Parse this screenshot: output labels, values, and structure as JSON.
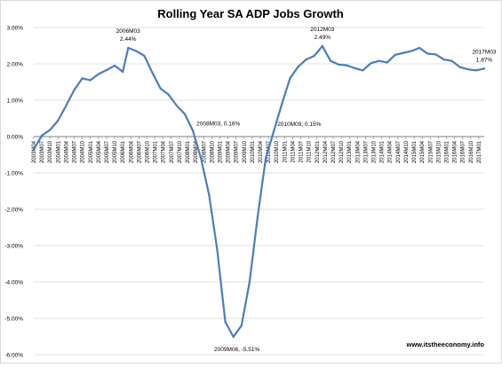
{
  "chart_data": {
    "type": "line",
    "title": "Rolling Year SA ADP Jobs Growth",
    "xlabel": "",
    "ylabel": "",
    "ylim": [
      -0.06,
      0.03
    ],
    "y_ticks": [
      {
        "value": 0.03,
        "label": "3.00%"
      },
      {
        "value": 0.02,
        "label": "2.00%"
      },
      {
        "value": 0.01,
        "label": "1.00%"
      },
      {
        "value": 0.0,
        "label": "0.00%"
      },
      {
        "value": -0.01,
        "label": "-1.00%"
      },
      {
        "value": -0.02,
        "label": "-2.00%"
      },
      {
        "value": -0.03,
        "label": "-3.00%"
      },
      {
        "value": -0.04,
        "label": "-4.00%"
      },
      {
        "value": -0.05,
        "label": "-5.00%"
      },
      {
        "value": -0.06,
        "label": "-6.00%"
      }
    ],
    "x_start": "2003M04",
    "x_end": "2017M03",
    "x_tick_labels": [
      "2003M04",
      "2003M07",
      "2003M10",
      "2004M01",
      "2004M04",
      "2004M07",
      "2004M10",
      "2005M01",
      "2005M04",
      "2005M07",
      "2005M10",
      "2006M01",
      "2006M04",
      "2006M07",
      "2006M10",
      "2007M01",
      "2007M04",
      "2007M07",
      "2007M10",
      "2008M01",
      "2008M04",
      "2008M07",
      "2008M10",
      "2009M01",
      "2009M04",
      "2009M07",
      "2009M10",
      "2010M01",
      "2010M04",
      "2010M07",
      "2010M10",
      "2011M01",
      "2011M04",
      "2011M07",
      "2011M10",
      "2012M01",
      "2012M04",
      "2012M07",
      "2012M10",
      "2013M01",
      "2013M04",
      "2013M07",
      "2013M10",
      "2014M01",
      "2014M04",
      "2014M07",
      "2014M10",
      "2015M01",
      "2015M04",
      "2015M07",
      "2015M10",
      "2016M01",
      "2016M04",
      "2016M07",
      "2016M10",
      "2017M01"
    ],
    "grid": {
      "horizontal": true,
      "vertical": false
    },
    "series": [
      {
        "name": "",
        "color": "#4a7ebb",
        "points": [
          {
            "x": "2003M04",
            "y": -0.0035
          },
          {
            "x": "2003M07",
            "y": 0.0003
          },
          {
            "x": "2003M10",
            "y": 0.0018
          },
          {
            "x": "2004M01",
            "y": 0.0044
          },
          {
            "x": "2004M04",
            "y": 0.0085
          },
          {
            "x": "2004M07",
            "y": 0.0128
          },
          {
            "x": "2004M10",
            "y": 0.016
          },
          {
            "x": "2005M01",
            "y": 0.0155
          },
          {
            "x": "2005M04",
            "y": 0.0172
          },
          {
            "x": "2005M07",
            "y": 0.0183
          },
          {
            "x": "2005M10",
            "y": 0.0195
          },
          {
            "x": "2006M01",
            "y": 0.0178
          },
          {
            "x": "2006M03",
            "y": 0.0244
          },
          {
            "x": "2006M06",
            "y": 0.0235
          },
          {
            "x": "2006M09",
            "y": 0.0222
          },
          {
            "x": "2006M12",
            "y": 0.0175
          },
          {
            "x": "2007M03",
            "y": 0.0132
          },
          {
            "x": "2007M06",
            "y": 0.0115
          },
          {
            "x": "2007M09",
            "y": 0.0085
          },
          {
            "x": "2007M12",
            "y": 0.0062
          },
          {
            "x": "2008M03",
            "y": 0.0016
          },
          {
            "x": "2008M06",
            "y": -0.006
          },
          {
            "x": "2008M09",
            "y": -0.016
          },
          {
            "x": "2008M12",
            "y": -0.031
          },
          {
            "x": "2009M03",
            "y": -0.051
          },
          {
            "x": "2009M06",
            "y": -0.0551
          },
          {
            "x": "2009M09",
            "y": -0.052
          },
          {
            "x": "2009M12",
            "y": -0.04
          },
          {
            "x": "2010M03",
            "y": -0.022
          },
          {
            "x": "2010M06",
            "y": -0.006
          },
          {
            "x": "2010M09",
            "y": 0.0015
          },
          {
            "x": "2010M12",
            "y": 0.009
          },
          {
            "x": "2011M03",
            "y": 0.016
          },
          {
            "x": "2011M06",
            "y": 0.0192
          },
          {
            "x": "2011M09",
            "y": 0.0212
          },
          {
            "x": "2011M12",
            "y": 0.0222
          },
          {
            "x": "2012M03",
            "y": 0.0249
          },
          {
            "x": "2012M06",
            "y": 0.0208
          },
          {
            "x": "2012M09",
            "y": 0.0198
          },
          {
            "x": "2012M12",
            "y": 0.0196
          },
          {
            "x": "2013M03",
            "y": 0.0188
          },
          {
            "x": "2013M06",
            "y": 0.0182
          },
          {
            "x": "2013M09",
            "y": 0.0202
          },
          {
            "x": "2013M12",
            "y": 0.0208
          },
          {
            "x": "2014M03",
            "y": 0.0204
          },
          {
            "x": "2014M06",
            "y": 0.0225
          },
          {
            "x": "2014M09",
            "y": 0.023
          },
          {
            "x": "2014M12",
            "y": 0.0235
          },
          {
            "x": "2015M03",
            "y": 0.0244
          },
          {
            "x": "2015M06",
            "y": 0.0228
          },
          {
            "x": "2015M09",
            "y": 0.0226
          },
          {
            "x": "2015M12",
            "y": 0.0212
          },
          {
            "x": "2016M03",
            "y": 0.0208
          },
          {
            "x": "2016M06",
            "y": 0.0191
          },
          {
            "x": "2016M09",
            "y": 0.0185
          },
          {
            "x": "2016M12",
            "y": 0.0182
          },
          {
            "x": "2017M03",
            "y": 0.0187
          }
        ]
      }
    ],
    "annotations": [
      {
        "x": "2006M03",
        "y": 0.0244,
        "lines": [
          "2006M03",
          "2.44%"
        ],
        "position": "above"
      },
      {
        "x": "2008M03",
        "y": 0.0016,
        "lines": [
          "2008M03, 0.16%"
        ],
        "position": "right"
      },
      {
        "x": "2009M06",
        "y": -0.0551,
        "lines": [
          "2009M06, -5.51%"
        ],
        "position": "below"
      },
      {
        "x": "2010M09",
        "y": 0.0015,
        "lines": [
          "2010M09, 0.15%"
        ],
        "position": "right"
      },
      {
        "x": "2012M03",
        "y": 0.0249,
        "lines": [
          "2012M03",
          "2.49%"
        ],
        "position": "above"
      },
      {
        "x": "2017M03",
        "y": 0.0187,
        "lines": [
          "2017M03",
          "1.87%"
        ],
        "position": "above"
      }
    ],
    "watermark": "www.itstheeconomy.info"
  }
}
